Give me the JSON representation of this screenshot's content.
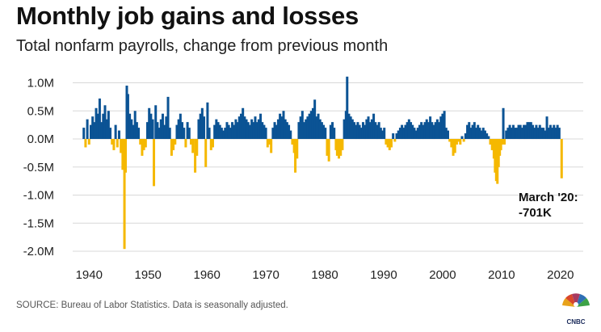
{
  "header": {
    "title": "Monthly job gains and losses",
    "subtitle": "Total nonfarm payrolls, change from previous month"
  },
  "footer": {
    "source": "SOURCE: Bureau of Labor Statistics. Data is seasonally adjusted.",
    "logo_text": "CNBC"
  },
  "colors": {
    "gain": "#0b5394",
    "loss": "#f5b800",
    "grid": "#d8d8d8"
  },
  "chart_data": {
    "type": "bar",
    "title": "Monthly job gains and losses",
    "subtitle": "Total nonfarm payrolls, change from previous month",
    "xlabel": "",
    "ylabel": "",
    "ylim": [
      -2.0,
      1.1
    ],
    "xlim": [
      1939,
      2020.3
    ],
    "y_unit": "M",
    "y_ticks": [
      {
        "value": 1.0,
        "label": "1.0M"
      },
      {
        "value": 0.5,
        "label": "0.5M"
      },
      {
        "value": 0.0,
        "label": "0.0M"
      },
      {
        "value": -0.5,
        "label": "-0.5M"
      },
      {
        "value": -1.0,
        "label": "-1.0M"
      },
      {
        "value": -1.5,
        "label": "-1.5M"
      },
      {
        "value": -2.0,
        "label": "-2.0M"
      }
    ],
    "x_ticks": [
      "1940",
      "1950",
      "1960",
      "1970",
      "1980",
      "1990",
      "2000",
      "2010",
      "2020"
    ],
    "grid": true,
    "legend": "none",
    "annotation": {
      "line1": "March '20:",
      "line2": "-701K",
      "x": 2020.2,
      "value": -0.701
    },
    "bars": [
      {
        "x": 1939.1,
        "value": 0.2
      },
      {
        "x": 1939.4,
        "value": -0.15
      },
      {
        "x": 1939.7,
        "value": 0.35
      },
      {
        "x": 1940.0,
        "value": -0.1
      },
      {
        "x": 1940.3,
        "value": 0.25
      },
      {
        "x": 1940.6,
        "value": 0.4
      },
      {
        "x": 1940.9,
        "value": 0.3
      },
      {
        "x": 1941.2,
        "value": 0.55
      },
      {
        "x": 1941.5,
        "value": 0.45
      },
      {
        "x": 1941.8,
        "value": 0.72
      },
      {
        "x": 1942.1,
        "value": 0.3
      },
      {
        "x": 1942.4,
        "value": 0.45
      },
      {
        "x": 1942.7,
        "value": 0.6
      },
      {
        "x": 1943.0,
        "value": 0.35
      },
      {
        "x": 1943.3,
        "value": 0.5
      },
      {
        "x": 1943.6,
        "value": 0.2
      },
      {
        "x": 1943.9,
        "value": -0.1
      },
      {
        "x": 1944.2,
        "value": -0.2
      },
      {
        "x": 1944.5,
        "value": 0.25
      },
      {
        "x": 1944.8,
        "value": -0.15
      },
      {
        "x": 1945.1,
        "value": 0.15
      },
      {
        "x": 1945.4,
        "value": -0.25
      },
      {
        "x": 1945.7,
        "value": -0.55
      },
      {
        "x": 1946.0,
        "value": -1.96
      },
      {
        "x": 1946.2,
        "value": -0.6
      },
      {
        "x": 1946.4,
        "value": 0.95
      },
      {
        "x": 1946.6,
        "value": 0.8
      },
      {
        "x": 1946.9,
        "value": 0.45
      },
      {
        "x": 1947.2,
        "value": 0.35
      },
      {
        "x": 1947.5,
        "value": 0.25
      },
      {
        "x": 1947.8,
        "value": 0.5
      },
      {
        "x": 1948.1,
        "value": 0.3
      },
      {
        "x": 1948.4,
        "value": 0.2
      },
      {
        "x": 1948.7,
        "value": -0.1
      },
      {
        "x": 1949.0,
        "value": -0.3
      },
      {
        "x": 1949.3,
        "value": -0.2
      },
      {
        "x": 1949.6,
        "value": -0.15
      },
      {
        "x": 1949.9,
        "value": 0.3
      },
      {
        "x": 1950.2,
        "value": 0.55
      },
      {
        "x": 1950.5,
        "value": 0.45
      },
      {
        "x": 1950.8,
        "value": 0.35
      },
      {
        "x": 1951.0,
        "value": -0.84
      },
      {
        "x": 1951.3,
        "value": 0.6
      },
      {
        "x": 1951.6,
        "value": 0.3
      },
      {
        "x": 1951.9,
        "value": 0.2
      },
      {
        "x": 1952.2,
        "value": 0.35
      },
      {
        "x": 1952.5,
        "value": 0.45
      },
      {
        "x": 1952.8,
        "value": 0.25
      },
      {
        "x": 1953.1,
        "value": 0.4
      },
      {
        "x": 1953.4,
        "value": 0.75
      },
      {
        "x": 1953.7,
        "value": 0.2
      },
      {
        "x": 1954.0,
        "value": -0.3
      },
      {
        "x": 1954.3,
        "value": -0.2
      },
      {
        "x": 1954.6,
        "value": -0.1
      },
      {
        "x": 1954.9,
        "value": 0.25
      },
      {
        "x": 1955.2,
        "value": 0.35
      },
      {
        "x": 1955.5,
        "value": 0.45
      },
      {
        "x": 1955.8,
        "value": 0.3
      },
      {
        "x": 1956.1,
        "value": 0.2
      },
      {
        "x": 1956.4,
        "value": -0.15
      },
      {
        "x": 1956.7,
        "value": 0.3
      },
      {
        "x": 1957.0,
        "value": 0.2
      },
      {
        "x": 1957.3,
        "value": -0.1
      },
      {
        "x": 1957.6,
        "value": -0.25
      },
      {
        "x": 1958.0,
        "value": -0.6
      },
      {
        "x": 1958.3,
        "value": -0.3
      },
      {
        "x": 1958.6,
        "value": 0.35
      },
      {
        "x": 1958.9,
        "value": 0.45
      },
      {
        "x": 1959.2,
        "value": 0.55
      },
      {
        "x": 1959.5,
        "value": 0.4
      },
      {
        "x": 1959.8,
        "value": -0.5
      },
      {
        "x": 1960.1,
        "value": 0.65
      },
      {
        "x": 1960.4,
        "value": 0.2
      },
      {
        "x": 1960.7,
        "value": -0.2
      },
      {
        "x": 1961.0,
        "value": -0.15
      },
      {
        "x": 1961.3,
        "value": 0.25
      },
      {
        "x": 1961.6,
        "value": 0.35
      },
      {
        "x": 1961.9,
        "value": 0.3
      },
      {
        "x": 1962.2,
        "value": 0.25
      },
      {
        "x": 1962.5,
        "value": 0.2
      },
      {
        "x": 1962.8,
        "value": 0.15
      },
      {
        "x": 1963.1,
        "value": 0.2
      },
      {
        "x": 1963.4,
        "value": 0.3
      },
      {
        "x": 1963.7,
        "value": 0.25
      },
      {
        "x": 1964.0,
        "value": 0.2
      },
      {
        "x": 1964.3,
        "value": 0.3
      },
      {
        "x": 1964.6,
        "value": 0.25
      },
      {
        "x": 1964.9,
        "value": 0.35
      },
      {
        "x": 1965.2,
        "value": 0.3
      },
      {
        "x": 1965.5,
        "value": 0.4
      },
      {
        "x": 1965.8,
        "value": 0.45
      },
      {
        "x": 1966.1,
        "value": 0.55
      },
      {
        "x": 1966.4,
        "value": 0.4
      },
      {
        "x": 1966.7,
        "value": 0.35
      },
      {
        "x": 1967.0,
        "value": 0.3
      },
      {
        "x": 1967.3,
        "value": 0.25
      },
      {
        "x": 1967.6,
        "value": 0.35
      },
      {
        "x": 1967.9,
        "value": 0.3
      },
      {
        "x": 1968.2,
        "value": 0.4
      },
      {
        "x": 1968.5,
        "value": 0.3
      },
      {
        "x": 1968.8,
        "value": 0.35
      },
      {
        "x": 1969.1,
        "value": 0.45
      },
      {
        "x": 1969.4,
        "value": 0.3
      },
      {
        "x": 1969.7,
        "value": 0.25
      },
      {
        "x": 1970.0,
        "value": 0.2
      },
      {
        "x": 1970.3,
        "value": -0.15
      },
      {
        "x": 1970.6,
        "value": -0.1
      },
      {
        "x": 1970.9,
        "value": -0.25
      },
      {
        "x": 1971.2,
        "value": 0.2
      },
      {
        "x": 1971.5,
        "value": 0.3
      },
      {
        "x": 1971.8,
        "value": 0.25
      },
      {
        "x": 1972.1,
        "value": 0.35
      },
      {
        "x": 1972.4,
        "value": 0.45
      },
      {
        "x": 1972.7,
        "value": 0.4
      },
      {
        "x": 1973.0,
        "value": 0.5
      },
      {
        "x": 1973.3,
        "value": 0.35
      },
      {
        "x": 1973.6,
        "value": 0.3
      },
      {
        "x": 1973.9,
        "value": 0.25
      },
      {
        "x": 1974.2,
        "value": 0.15
      },
      {
        "x": 1974.5,
        "value": -0.1
      },
      {
        "x": 1974.8,
        "value": -0.25
      },
      {
        "x": 1975.0,
        "value": -0.6
      },
      {
        "x": 1975.3,
        "value": -0.35
      },
      {
        "x": 1975.6,
        "value": 0.3
      },
      {
        "x": 1975.9,
        "value": 0.4
      },
      {
        "x": 1976.2,
        "value": 0.5
      },
      {
        "x": 1976.5,
        "value": 0.3
      },
      {
        "x": 1976.8,
        "value": 0.35
      },
      {
        "x": 1977.1,
        "value": 0.4
      },
      {
        "x": 1977.4,
        "value": 0.45
      },
      {
        "x": 1977.7,
        "value": 0.5
      },
      {
        "x": 1978.0,
        "value": 0.55
      },
      {
        "x": 1978.3,
        "value": 0.7
      },
      {
        "x": 1978.6,
        "value": 0.4
      },
      {
        "x": 1978.9,
        "value": 0.45
      },
      {
        "x": 1979.2,
        "value": 0.35
      },
      {
        "x": 1979.5,
        "value": 0.3
      },
      {
        "x": 1979.8,
        "value": 0.25
      },
      {
        "x": 1980.1,
        "value": 0.2
      },
      {
        "x": 1980.4,
        "value": -0.3
      },
      {
        "x": 1980.7,
        "value": -0.4
      },
      {
        "x": 1981.0,
        "value": 0.25
      },
      {
        "x": 1981.3,
        "value": 0.3
      },
      {
        "x": 1981.6,
        "value": 0.2
      },
      {
        "x": 1981.9,
        "value": -0.2
      },
      {
        "x": 1982.1,
        "value": -0.3
      },
      {
        "x": 1982.4,
        "value": -0.35
      },
      {
        "x": 1982.7,
        "value": -0.3
      },
      {
        "x": 1983.0,
        "value": -0.2
      },
      {
        "x": 1983.3,
        "value": 0.35
      },
      {
        "x": 1983.6,
        "value": 0.5
      },
      {
        "x": 1983.8,
        "value": 1.11
      },
      {
        "x": 1984.1,
        "value": 0.45
      },
      {
        "x": 1984.4,
        "value": 0.4
      },
      {
        "x": 1984.7,
        "value": 0.35
      },
      {
        "x": 1985.0,
        "value": 0.3
      },
      {
        "x": 1985.3,
        "value": 0.25
      },
      {
        "x": 1985.6,
        "value": 0.3
      },
      {
        "x": 1985.9,
        "value": 0.25
      },
      {
        "x": 1986.2,
        "value": 0.2
      },
      {
        "x": 1986.5,
        "value": 0.3
      },
      {
        "x": 1986.8,
        "value": 0.25
      },
      {
        "x": 1987.1,
        "value": 0.35
      },
      {
        "x": 1987.4,
        "value": 0.4
      },
      {
        "x": 1987.7,
        "value": 0.3
      },
      {
        "x": 1988.0,
        "value": 0.35
      },
      {
        "x": 1988.3,
        "value": 0.45
      },
      {
        "x": 1988.6,
        "value": 0.3
      },
      {
        "x": 1988.9,
        "value": 0.25
      },
      {
        "x": 1989.2,
        "value": 0.3
      },
      {
        "x": 1989.5,
        "value": 0.2
      },
      {
        "x": 1989.8,
        "value": 0.15
      },
      {
        "x": 1990.1,
        "value": 0.2
      },
      {
        "x": 1990.4,
        "value": -0.1
      },
      {
        "x": 1990.7,
        "value": -0.15
      },
      {
        "x": 1991.0,
        "value": -0.2
      },
      {
        "x": 1991.3,
        "value": -0.15
      },
      {
        "x": 1991.6,
        "value": 0.1
      },
      {
        "x": 1991.9,
        "value": -0.05
      },
      {
        "x": 1992.2,
        "value": 0.1
      },
      {
        "x": 1992.5,
        "value": 0.15
      },
      {
        "x": 1992.8,
        "value": 0.2
      },
      {
        "x": 1993.1,
        "value": 0.25
      },
      {
        "x": 1993.4,
        "value": 0.2
      },
      {
        "x": 1993.7,
        "value": 0.25
      },
      {
        "x": 1994.0,
        "value": 0.3
      },
      {
        "x": 1994.3,
        "value": 0.35
      },
      {
        "x": 1994.6,
        "value": 0.3
      },
      {
        "x": 1994.9,
        "value": 0.25
      },
      {
        "x": 1995.2,
        "value": 0.2
      },
      {
        "x": 1995.5,
        "value": 0.15
      },
      {
        "x": 1995.8,
        "value": 0.2
      },
      {
        "x": 1996.1,
        "value": 0.25
      },
      {
        "x": 1996.4,
        "value": 0.3
      },
      {
        "x": 1996.7,
        "value": 0.25
      },
      {
        "x": 1997.0,
        "value": 0.3
      },
      {
        "x": 1997.3,
        "value": 0.35
      },
      {
        "x": 1997.6,
        "value": 0.3
      },
      {
        "x": 1997.9,
        "value": 0.4
      },
      {
        "x": 1998.2,
        "value": 0.3
      },
      {
        "x": 1998.5,
        "value": 0.25
      },
      {
        "x": 1998.8,
        "value": 0.3
      },
      {
        "x": 1999.1,
        "value": 0.35
      },
      {
        "x": 1999.4,
        "value": 0.3
      },
      {
        "x": 1999.7,
        "value": 0.4
      },
      {
        "x": 2000.0,
        "value": 0.45
      },
      {
        "x": 2000.3,
        "value": 0.5
      },
      {
        "x": 2000.6,
        "value": 0.2
      },
      {
        "x": 2000.9,
        "value": 0.15
      },
      {
        "x": 2001.2,
        "value": -0.05
      },
      {
        "x": 2001.5,
        "value": -0.15
      },
      {
        "x": 2001.8,
        "value": -0.3
      },
      {
        "x": 2002.1,
        "value": -0.25
      },
      {
        "x": 2002.4,
        "value": -0.1
      },
      {
        "x": 2002.7,
        "value": -0.05
      },
      {
        "x": 2003.0,
        "value": -0.1
      },
      {
        "x": 2003.3,
        "value": 0.05
      },
      {
        "x": 2003.6,
        "value": -0.05
      },
      {
        "x": 2003.9,
        "value": 0.1
      },
      {
        "x": 2004.2,
        "value": 0.25
      },
      {
        "x": 2004.5,
        "value": 0.3
      },
      {
        "x": 2004.8,
        "value": 0.2
      },
      {
        "x": 2005.1,
        "value": 0.25
      },
      {
        "x": 2005.4,
        "value": 0.3
      },
      {
        "x": 2005.7,
        "value": 0.2
      },
      {
        "x": 2006.0,
        "value": 0.25
      },
      {
        "x": 2006.3,
        "value": 0.2
      },
      {
        "x": 2006.6,
        "value": 0.15
      },
      {
        "x": 2006.9,
        "value": 0.2
      },
      {
        "x": 2007.2,
        "value": 0.15
      },
      {
        "x": 2007.5,
        "value": 0.1
      },
      {
        "x": 2007.8,
        "value": 0.05
      },
      {
        "x": 2008.1,
        "value": -0.1
      },
      {
        "x": 2008.4,
        "value": -0.2
      },
      {
        "x": 2008.7,
        "value": -0.35
      },
      {
        "x": 2008.9,
        "value": -0.6
      },
      {
        "x": 2009.1,
        "value": -0.75
      },
      {
        "x": 2009.3,
        "value": -0.8
      },
      {
        "x": 2009.5,
        "value": -0.5
      },
      {
        "x": 2009.7,
        "value": -0.3
      },
      {
        "x": 2009.9,
        "value": -0.2
      },
      {
        "x": 2010.1,
        "value": -0.1
      },
      {
        "x": 2010.3,
        "value": 0.55
      },
      {
        "x": 2010.5,
        "value": -0.1
      },
      {
        "x": 2010.8,
        "value": 0.15
      },
      {
        "x": 2011.1,
        "value": 0.2
      },
      {
        "x": 2011.4,
        "value": 0.25
      },
      {
        "x": 2011.7,
        "value": 0.2
      },
      {
        "x": 2012.0,
        "value": 0.25
      },
      {
        "x": 2012.3,
        "value": 0.2
      },
      {
        "x": 2012.6,
        "value": 0.2
      },
      {
        "x": 2012.9,
        "value": 0.25
      },
      {
        "x": 2013.2,
        "value": 0.25
      },
      {
        "x": 2013.5,
        "value": 0.2
      },
      {
        "x": 2013.8,
        "value": 0.25
      },
      {
        "x": 2014.1,
        "value": 0.25
      },
      {
        "x": 2014.4,
        "value": 0.3
      },
      {
        "x": 2014.7,
        "value": 0.3
      },
      {
        "x": 2015.0,
        "value": 0.3
      },
      {
        "x": 2015.3,
        "value": 0.25
      },
      {
        "x": 2015.6,
        "value": 0.2
      },
      {
        "x": 2015.9,
        "value": 0.25
      },
      {
        "x": 2016.2,
        "value": 0.2
      },
      {
        "x": 2016.5,
        "value": 0.25
      },
      {
        "x": 2016.8,
        "value": 0.2
      },
      {
        "x": 2017.1,
        "value": 0.2
      },
      {
        "x": 2017.4,
        "value": 0.15
      },
      {
        "x": 2017.7,
        "value": 0.4
      },
      {
        "x": 2018.0,
        "value": 0.2
      },
      {
        "x": 2018.3,
        "value": 0.25
      },
      {
        "x": 2018.6,
        "value": 0.2
      },
      {
        "x": 2018.9,
        "value": 0.25
      },
      {
        "x": 2019.2,
        "value": 0.2
      },
      {
        "x": 2019.5,
        "value": 0.25
      },
      {
        "x": 2019.8,
        "value": 0.2
      },
      {
        "x": 2020.2,
        "value": -0.701
      }
    ]
  }
}
